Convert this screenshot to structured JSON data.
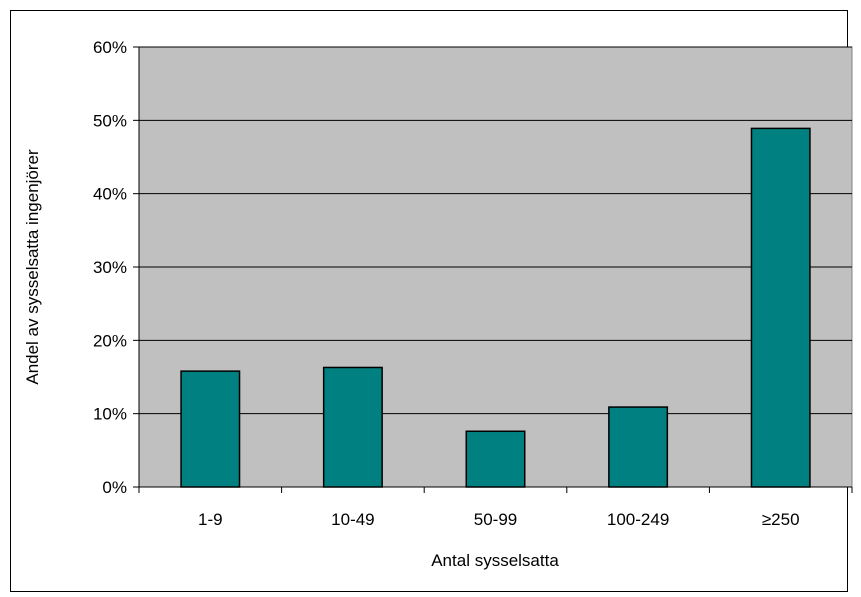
{
  "chart_data": {
    "type": "bar",
    "title": "",
    "xlabel": "Antal sysselsatta",
    "ylabel": "Andel av sysselsatta ingenjörer",
    "categories": [
      "1-9",
      "10-49",
      "50-99",
      "100-249",
      "≥250"
    ],
    "values": [
      15.8,
      16.3,
      7.6,
      10.9,
      48.9
    ],
    "ylim": [
      0,
      60
    ],
    "yticks": [
      "0%",
      "10%",
      "20%",
      "30%",
      "40%",
      "50%",
      "60%"
    ],
    "grid": true,
    "legend": "none",
    "colors": {
      "bar": "#008080",
      "plot_background": "#c0c0c0",
      "gridline": "#000000"
    }
  }
}
